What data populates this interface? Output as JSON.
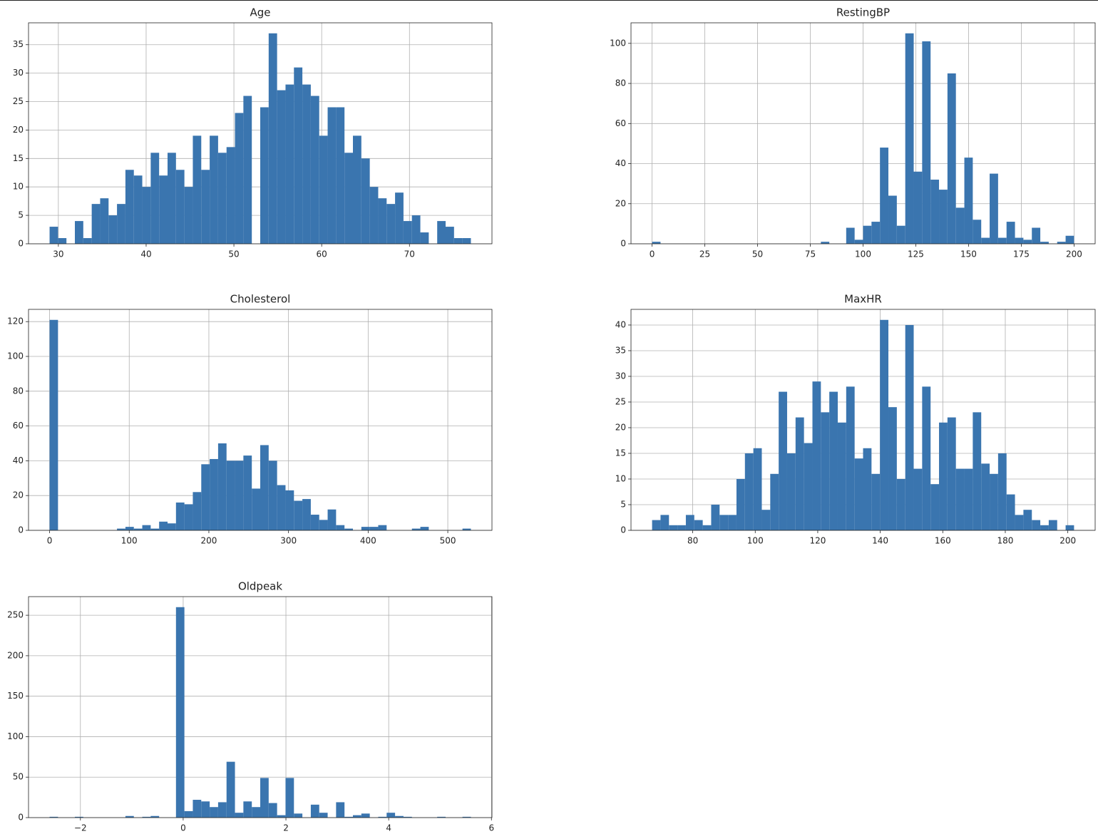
{
  "chart_data": [
    {
      "type": "histogram",
      "title": "Age",
      "color": "#3a75af",
      "grid": true,
      "bins": [
        29,
        29.96,
        30.92,
        31.88,
        32.84,
        33.8,
        34.76,
        35.72,
        36.68,
        37.64,
        38.6,
        39.56,
        40.52,
        41.48,
        42.44,
        43.4,
        44.36,
        45.32,
        46.28,
        47.24,
        48.2,
        49.16,
        50.12,
        51.08,
        52.04,
        53,
        53.96,
        54.92,
        55.88,
        56.84,
        57.8,
        58.76,
        59.72,
        60.68,
        61.64,
        62.6,
        63.56,
        64.52,
        65.48,
        66.44,
        67.4,
        68.36,
        69.32,
        70.28,
        71.24,
        72.2,
        73.16,
        74.12,
        75.08,
        76.04,
        77
      ],
      "values": [
        3,
        1,
        0,
        4,
        1,
        7,
        8,
        5,
        7,
        13,
        12,
        10,
        16,
        12,
        16,
        13,
        10,
        19,
        13,
        19,
        16,
        17,
        23,
        26,
        0,
        24,
        37,
        27,
        28,
        31,
        28,
        26,
        19,
        24,
        24,
        16,
        19,
        15,
        10,
        8,
        7,
        9,
        4,
        5,
        2,
        0,
        4,
        3,
        1,
        1
      ],
      "xlim": [
        26.6,
        79.4
      ],
      "xticks": [
        30,
        40,
        50,
        60,
        70
      ],
      "ylim": [
        0,
        38.85
      ],
      "yticks": [
        0,
        5,
        10,
        15,
        20,
        25,
        30,
        35
      ]
    },
    {
      "type": "histogram",
      "title": "RestingBP",
      "color": "#3a75af",
      "grid": true,
      "bins": [
        0,
        4,
        8,
        12,
        16,
        20,
        24,
        28,
        32,
        36,
        40,
        44,
        48,
        52,
        56,
        60,
        64,
        68,
        72,
        76,
        80,
        84,
        88,
        92,
        96,
        100,
        104,
        108,
        112,
        116,
        120,
        124,
        128,
        132,
        136,
        140,
        144,
        148,
        152,
        156,
        160,
        164,
        168,
        172,
        176,
        180,
        184,
        188,
        192,
        196,
        200
      ],
      "values": [
        1,
        0,
        0,
        0,
        0,
        0,
        0,
        0,
        0,
        0,
        0,
        0,
        0,
        0,
        0,
        0,
        0,
        0,
        0,
        0,
        1,
        0,
        0,
        8,
        2,
        9,
        11,
        48,
        24,
        9,
        105,
        36,
        101,
        32,
        27,
        85,
        18,
        43,
        12,
        3,
        35,
        3,
        11,
        3,
        2,
        8,
        1,
        0,
        1,
        4
      ],
      "xlim": [
        -10,
        210
      ],
      "xticks": [
        0,
        25,
        50,
        75,
        100,
        125,
        150,
        175,
        200
      ],
      "ylim": [
        0,
        110.25
      ],
      "yticks": [
        0,
        20,
        40,
        60,
        80,
        100
      ]
    },
    {
      "type": "histogram",
      "title": "Cholesterol",
      "color": "#3a75af",
      "grid": true,
      "bins": [
        0,
        10.58,
        21.16,
        31.74,
        42.32,
        52.9,
        63.48,
        74.06,
        84.64,
        95.22,
        105.8,
        116.38,
        126.96,
        137.54,
        148.12,
        158.7,
        169.28,
        179.86,
        190.44,
        201.02,
        211.6,
        222.18,
        232.76,
        243.34,
        253.92,
        264.5,
        275.08,
        285.66,
        296.24,
        306.82,
        317.4,
        327.98,
        338.56,
        349.14,
        359.72,
        370.3,
        380.88,
        391.46,
        402.04,
        412.62,
        423.2,
        433.78,
        444.36,
        454.94,
        465.52,
        476.1,
        486.68,
        497.26,
        507.84,
        518.42,
        529
      ],
      "values": [
        121,
        0,
        0,
        0,
        0,
        0,
        0,
        0,
        1,
        2,
        1,
        3,
        1,
        5,
        4,
        16,
        15,
        22,
        38,
        41,
        50,
        40,
        40,
        43,
        24,
        49,
        40,
        26,
        23,
        17,
        18,
        9,
        6,
        12,
        3,
        1,
        0,
        2,
        2,
        3,
        0,
        0,
        0,
        1,
        2,
        0,
        0,
        0,
        0,
        1
      ],
      "xlim": [
        -26.45,
        555.45
      ],
      "xticks": [
        0,
        100,
        200,
        300,
        400,
        500
      ],
      "ylim": [
        0,
        127.05
      ],
      "yticks": [
        0,
        20,
        40,
        60,
        80,
        100,
        120
      ]
    },
    {
      "type": "histogram",
      "title": "MaxHR",
      "color": "#3a75af",
      "grid": true,
      "bins": [
        67,
        69.7,
        72.4,
        75.1,
        77.8,
        80.5,
        83.2,
        85.9,
        88.6,
        91.3,
        94,
        96.7,
        99.4,
        102.1,
        104.8,
        107.5,
        110.2,
        112.9,
        115.6,
        118.3,
        121,
        123.7,
        126.4,
        129.1,
        131.8,
        134.5,
        137.2,
        139.9,
        142.6,
        145.3,
        148,
        150.7,
        153.4,
        156.1,
        158.8,
        161.5,
        164.2,
        166.9,
        169.6,
        172.3,
        175,
        177.7,
        180.4,
        183.1,
        185.8,
        188.5,
        191.2,
        193.9,
        196.6,
        199.3,
        202
      ],
      "values": [
        2,
        3,
        1,
        1,
        3,
        2,
        1,
        5,
        3,
        3,
        10,
        15,
        16,
        4,
        11,
        27,
        15,
        22,
        17,
        29,
        23,
        27,
        21,
        28,
        14,
        16,
        11,
        41,
        24,
        10,
        40,
        12,
        28,
        9,
        21,
        22,
        12,
        12,
        23,
        13,
        11,
        15,
        7,
        3,
        4,
        2,
        1,
        2,
        0,
        1
      ],
      "xlim": [
        60.25,
        208.75
      ],
      "xticks": [
        80,
        100,
        120,
        140,
        160,
        180,
        200
      ],
      "ylim": [
        0,
        43.05
      ],
      "yticks": [
        0,
        5,
        10,
        15,
        20,
        25,
        30,
        35,
        40
      ]
    },
    {
      "type": "histogram",
      "title": "Oldpeak",
      "color": "#3a75af",
      "grid": true,
      "bins": [
        -2.6,
        -2.436,
        -2.272,
        -2.108,
        -1.944,
        -1.78,
        -1.616,
        -1.452,
        -1.288,
        -1.124,
        -0.96,
        -0.796,
        -0.632,
        -0.468,
        -0.304,
        -0.14,
        0.024,
        0.188,
        0.352,
        0.516,
        0.68,
        0.844,
        1.008,
        1.172,
        1.336,
        1.5,
        1.664,
        1.828,
        1.992,
        2.156,
        2.32,
        2.484,
        2.648,
        2.812,
        2.976,
        3.14,
        3.304,
        3.468,
        3.632,
        3.796,
        3.96,
        4.124,
        4.288,
        4.452,
        4.616,
        4.78,
        4.944,
        5.108,
        5.272,
        5.436,
        5.6
      ],
      "values": [
        1,
        0,
        0,
        1,
        0,
        0,
        0,
        0,
        0,
        2,
        0,
        1,
        2,
        0,
        0,
        260,
        8,
        22,
        20,
        13,
        19,
        69,
        6,
        20,
        13,
        49,
        18,
        3,
        49,
        5,
        0,
        16,
        6,
        0,
        19,
        1,
        3,
        5,
        0,
        1,
        6,
        2,
        1,
        0,
        0,
        0,
        1,
        0,
        0,
        1
      ],
      "xlim": [
        -3.01,
        6.01
      ],
      "xticks": [
        {
          "value": -2,
          "label": "−2"
        },
        0,
        2,
        4,
        6
      ],
      "ylim": [
        0,
        273
      ],
      "yticks": [
        0,
        50,
        100,
        150,
        200,
        250
      ]
    }
  ]
}
